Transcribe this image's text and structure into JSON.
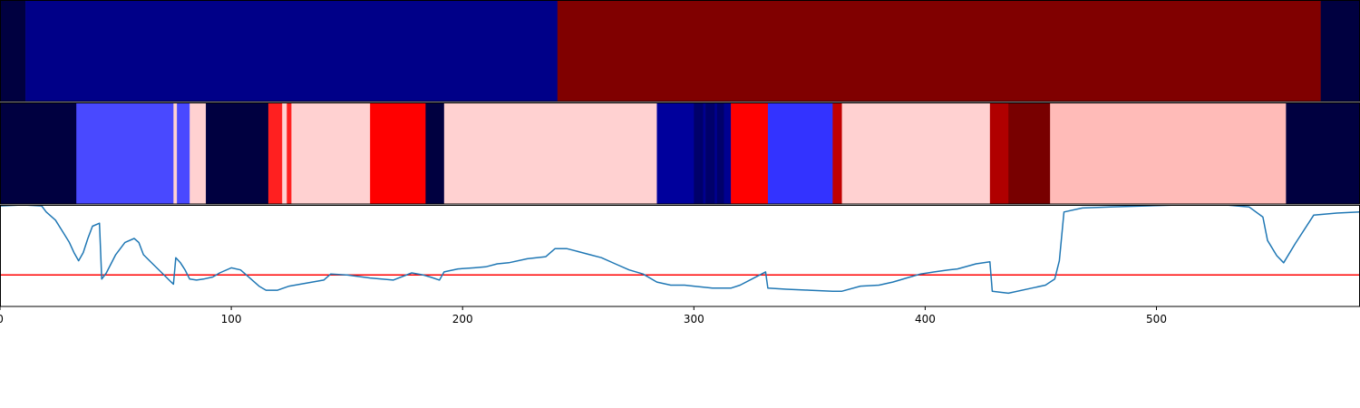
{
  "chart_data": [
    {
      "type": "heatmap",
      "name": "top-color-strip",
      "xlim": [
        0,
        588
      ],
      "segments": [
        {
          "start": 0,
          "end": 11,
          "color": "#000040"
        },
        {
          "start": 11,
          "end": 241,
          "color": "#000088"
        },
        {
          "start": 241,
          "end": 571,
          "color": "#800000"
        },
        {
          "start": 571,
          "end": 588,
          "color": "#000040"
        }
      ]
    },
    {
      "type": "heatmap",
      "name": "middle-color-strip",
      "xlim": [
        0,
        588
      ],
      "segments": [
        {
          "start": 0,
          "end": 33,
          "color": "#000040"
        },
        {
          "start": 33,
          "end": 75,
          "color": "#4949ff"
        },
        {
          "start": 75,
          "end": 76.5,
          "color": "#ffd1d1"
        },
        {
          "start": 76.5,
          "end": 82,
          "color": "#4949ff"
        },
        {
          "start": 82,
          "end": 89,
          "color": "#ffd1d1"
        },
        {
          "start": 89,
          "end": 116,
          "color": "#000040"
        },
        {
          "start": 116,
          "end": 122,
          "color": "#ff2020"
        },
        {
          "start": 122,
          "end": 124,
          "color": "#ffd1d1"
        },
        {
          "start": 124,
          "end": 126,
          "color": "#ff2020"
        },
        {
          "start": 126,
          "end": 160,
          "color": "#ffd1d1"
        },
        {
          "start": 160,
          "end": 184,
          "color": "#ff0000"
        },
        {
          "start": 184,
          "end": 192,
          "color": "#000040"
        },
        {
          "start": 192,
          "end": 284,
          "color": "#ffd1d1"
        },
        {
          "start": 284,
          "end": 300,
          "color": "#00009c"
        },
        {
          "start": 300,
          "end": 304,
          "color": "#00006a"
        },
        {
          "start": 304,
          "end": 305,
          "color": "#000090"
        },
        {
          "start": 305,
          "end": 309,
          "color": "#00006a"
        },
        {
          "start": 309,
          "end": 310,
          "color": "#000090"
        },
        {
          "start": 310,
          "end": 313,
          "color": "#00006a"
        },
        {
          "start": 313,
          "end": 316,
          "color": "#000090"
        },
        {
          "start": 316,
          "end": 332,
          "color": "#ff0000"
        },
        {
          "start": 332,
          "end": 360,
          "color": "#3333ff"
        },
        {
          "start": 360,
          "end": 364,
          "color": "#c00000"
        },
        {
          "start": 364,
          "end": 428,
          "color": "#ffd1d1"
        },
        {
          "start": 428,
          "end": 436,
          "color": "#b00000"
        },
        {
          "start": 436,
          "end": 454,
          "color": "#780000"
        },
        {
          "start": 454,
          "end": 556,
          "color": "#ffbbb8"
        },
        {
          "start": 556,
          "end": 588,
          "color": "#000040"
        }
      ]
    },
    {
      "type": "line",
      "name": "signal-line",
      "xlim": [
        0,
        588
      ],
      "xticks": [
        0,
        100,
        200,
        300,
        400,
        500
      ],
      "xtick_labels": [
        "0",
        "100",
        "200",
        "300",
        "400",
        "500"
      ],
      "line_color": "#1f77b4",
      "threshold": 0.31,
      "threshold_color": "#ff0000",
      "ylim": [
        0,
        1
      ],
      "x": [
        0,
        10,
        18,
        20,
        24,
        27,
        30,
        32,
        34,
        36,
        38,
        40,
        43,
        44,
        46,
        50,
        54,
        58,
        60,
        62,
        66,
        70,
        74,
        75,
        76,
        78,
        80,
        82,
        85,
        88,
        92,
        95,
        100,
        104,
        108,
        112,
        115,
        120,
        125,
        130,
        135,
        140,
        143,
        150,
        160,
        170,
        178,
        183,
        186,
        190,
        192,
        198,
        205,
        210,
        215,
        220,
        228,
        236,
        240,
        245,
        250,
        255,
        260,
        266,
        272,
        278,
        284,
        290,
        296,
        300,
        308,
        316,
        320,
        326,
        331,
        332,
        340,
        350,
        360,
        364,
        372,
        380,
        386,
        392,
        398,
        404,
        410,
        414,
        422,
        428,
        429,
        436,
        446,
        452,
        456,
        458,
        460,
        468,
        480,
        495,
        510,
        530,
        540,
        546,
        548,
        552,
        555,
        560,
        568,
        578,
        588
      ],
      "y": [
        0.99,
        1.0,
        0.99,
        0.93,
        0.85,
        0.74,
        0.63,
        0.53,
        0.45,
        0.53,
        0.67,
        0.79,
        0.82,
        0.27,
        0.33,
        0.51,
        0.63,
        0.67,
        0.63,
        0.51,
        0.42,
        0.33,
        0.24,
        0.22,
        0.48,
        0.43,
        0.36,
        0.27,
        0.26,
        0.27,
        0.29,
        0.33,
        0.38,
        0.36,
        0.28,
        0.2,
        0.16,
        0.16,
        0.2,
        0.22,
        0.24,
        0.26,
        0.32,
        0.31,
        0.28,
        0.26,
        0.33,
        0.31,
        0.29,
        0.26,
        0.34,
        0.37,
        0.38,
        0.39,
        0.42,
        0.43,
        0.47,
        0.49,
        0.57,
        0.57,
        0.54,
        0.51,
        0.48,
        0.42,
        0.36,
        0.32,
        0.24,
        0.21,
        0.21,
        0.2,
        0.18,
        0.18,
        0.21,
        0.28,
        0.34,
        0.18,
        0.17,
        0.16,
        0.15,
        0.15,
        0.2,
        0.21,
        0.24,
        0.28,
        0.32,
        0.34,
        0.36,
        0.37,
        0.42,
        0.44,
        0.15,
        0.13,
        0.18,
        0.21,
        0.27,
        0.45,
        0.93,
        0.97,
        0.98,
        0.99,
        1.0,
        1.0,
        0.98,
        0.88,
        0.65,
        0.5,
        0.43,
        0.62,
        0.9,
        0.92,
        0.93
      ]
    }
  ]
}
